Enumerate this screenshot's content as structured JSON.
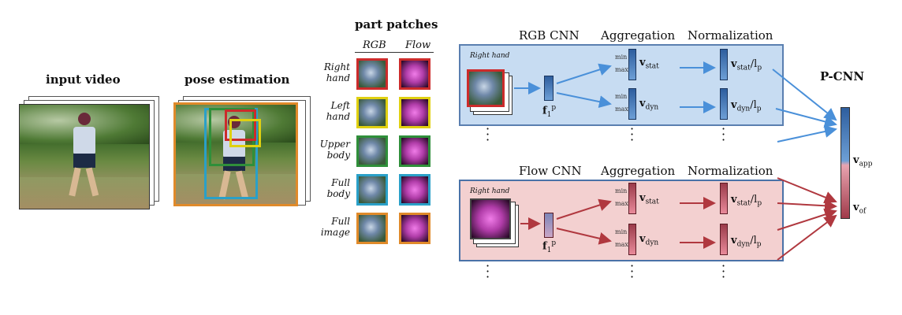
{
  "labels": {
    "input_video": "input video",
    "pose_estimation": "pose estimation",
    "part_patches": "part patches",
    "rgb_col": "RGB",
    "flow_col": "Flow",
    "pcnn": "P-CNN"
  },
  "parts": [
    {
      "line1": "Right",
      "line2": "hand",
      "color": "#cc2b2b"
    },
    {
      "line1": "Left",
      "line2": "hand",
      "color": "#e0d010"
    },
    {
      "line1": "Upper",
      "line2": "body",
      "color": "#2f8f3a"
    },
    {
      "line1": "Full",
      "line2": "body",
      "color": "#2aa0c8"
    },
    {
      "line1": "Full",
      "line2": "image",
      "color": "#e08a2a"
    }
  ],
  "rgb_panel": {
    "title": "RGB CNN",
    "aggregation": "Aggregation",
    "normalization": "Normalization",
    "patch_label": "Right hand",
    "feature": "f",
    "feature_sup": "p",
    "feature_sub": "1",
    "min": "min",
    "max": "max",
    "stat_v": "v",
    "stat_sub": "stat",
    "dyn_sub": "dyn",
    "norm_div": "/l",
    "norm_div_sub": "p"
  },
  "flow_panel": {
    "title": "Flow CNN",
    "aggregation": "Aggregation",
    "normalization": "Normalization",
    "patch_label": "Right hand",
    "feature": "f",
    "feature_sup": "p",
    "feature_sub": "1",
    "min": "min",
    "max": "max",
    "stat_v": "v",
    "stat_sub": "stat",
    "dyn_sub": "dyn",
    "norm_div": "/l",
    "norm_div_sub": "p"
  },
  "output": {
    "v_app": "v",
    "v_app_sub": "app",
    "v_of": "v",
    "v_of_sub": "of"
  },
  "colors": {
    "rgb_panel_bg": "#c7dcf2",
    "flow_panel_bg": "#f3d0d0",
    "rgb_arrow": "#4a90d9",
    "flow_arrow": "#b0383f"
  }
}
